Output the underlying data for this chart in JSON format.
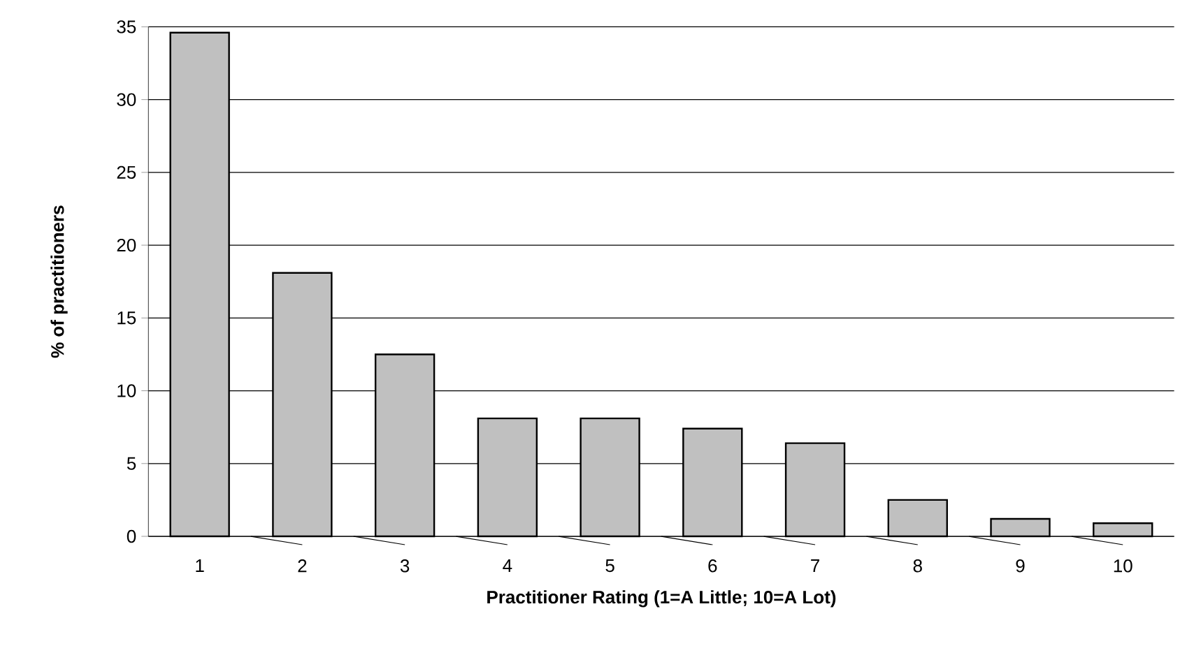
{
  "chart_data": {
    "type": "bar",
    "xlabel": "Practitioner Rating (1=A Little; 10=A Lot)",
    "ylabel": "% of practitioners",
    "categories": [
      "1",
      "2",
      "3",
      "4",
      "5",
      "6",
      "7",
      "8",
      "9",
      "10"
    ],
    "values": [
      34.6,
      18.1,
      12.5,
      8.1,
      8.1,
      7.4,
      6.4,
      2.5,
      1.2,
      0.9
    ],
    "color": "#c0c0c0",
    "ylim": [
      0,
      35
    ],
    "yticks": [
      0,
      5,
      10,
      15,
      20,
      25,
      30,
      35
    ],
    "grid": "y"
  }
}
